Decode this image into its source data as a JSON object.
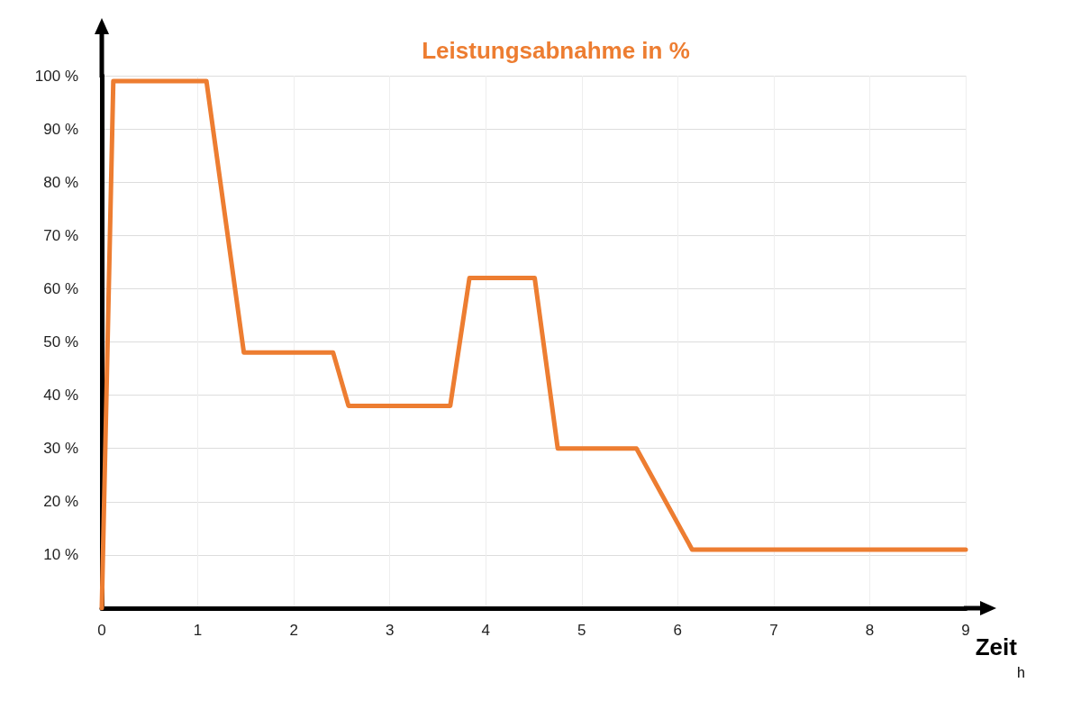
{
  "chart_data": {
    "type": "line",
    "title": "Leistungsabnahme in %",
    "xlabel": "Zeit",
    "annotations": [
      "h"
    ],
    "x": [
      0,
      0.12,
      1.09,
      1.48,
      2.41,
      2.57,
      3.63,
      3.83,
      4.51,
      4.75,
      5.57,
      6.15,
      9
    ],
    "series": [
      {
        "color": "#ed7d31",
        "values": [
          0,
          99,
          99,
          48,
          48,
          38,
          38,
          62,
          62,
          30,
          30,
          11,
          11
        ]
      }
    ],
    "xlim": [
      0,
      9
    ],
    "xticks": [
      0,
      1,
      2,
      3,
      4,
      5,
      6,
      7,
      8,
      9
    ],
    "ylim": [
      0,
      100
    ],
    "yticks": [
      {
        "value": 10,
        "label": "10 %"
      },
      {
        "value": 20,
        "label": "20 %"
      },
      {
        "value": 30,
        "label": "30 %"
      },
      {
        "value": 40,
        "label": "40 %"
      },
      {
        "value": 50,
        "label": "50 %"
      },
      {
        "value": 60,
        "label": "60 %"
      },
      {
        "value": 70,
        "label": "70 %"
      },
      {
        "value": 80,
        "label": "80 %"
      },
      {
        "value": 90,
        "label": "90 %"
      },
      {
        "value": 100,
        "label": "100 %"
      }
    ],
    "grid": true,
    "marker": "none",
    "line_style": "solid"
  }
}
